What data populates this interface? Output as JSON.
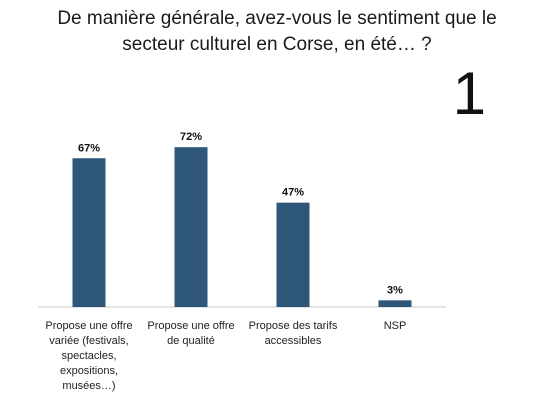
{
  "header": {
    "title_line1": "De manière générale, avez-vous le sentiment que le",
    "title_line2": "secteur culturel en Corse, en été… ?",
    "slide_number": "1"
  },
  "colors": {
    "bar": "#2e5678",
    "axis": "#c8c8c8",
    "label": "#111111"
  },
  "chart_data": {
    "type": "bar",
    "title": "",
    "categories": [
      "Propose  une offre\nvariée (festivals,\nspectacles,\nexpositions,\nmusées…)",
      "Propose une offre\nde qualité",
      "Propose des tarifs\naccessibles",
      "NSP"
    ],
    "values": [
      67,
      72,
      47,
      3
    ],
    "value_labels": [
      "67%",
      "72%",
      "47%",
      "3%"
    ],
    "ylim": [
      0,
      100
    ],
    "xlabel": "",
    "ylabel": "",
    "grid": false,
    "legend": "none"
  }
}
